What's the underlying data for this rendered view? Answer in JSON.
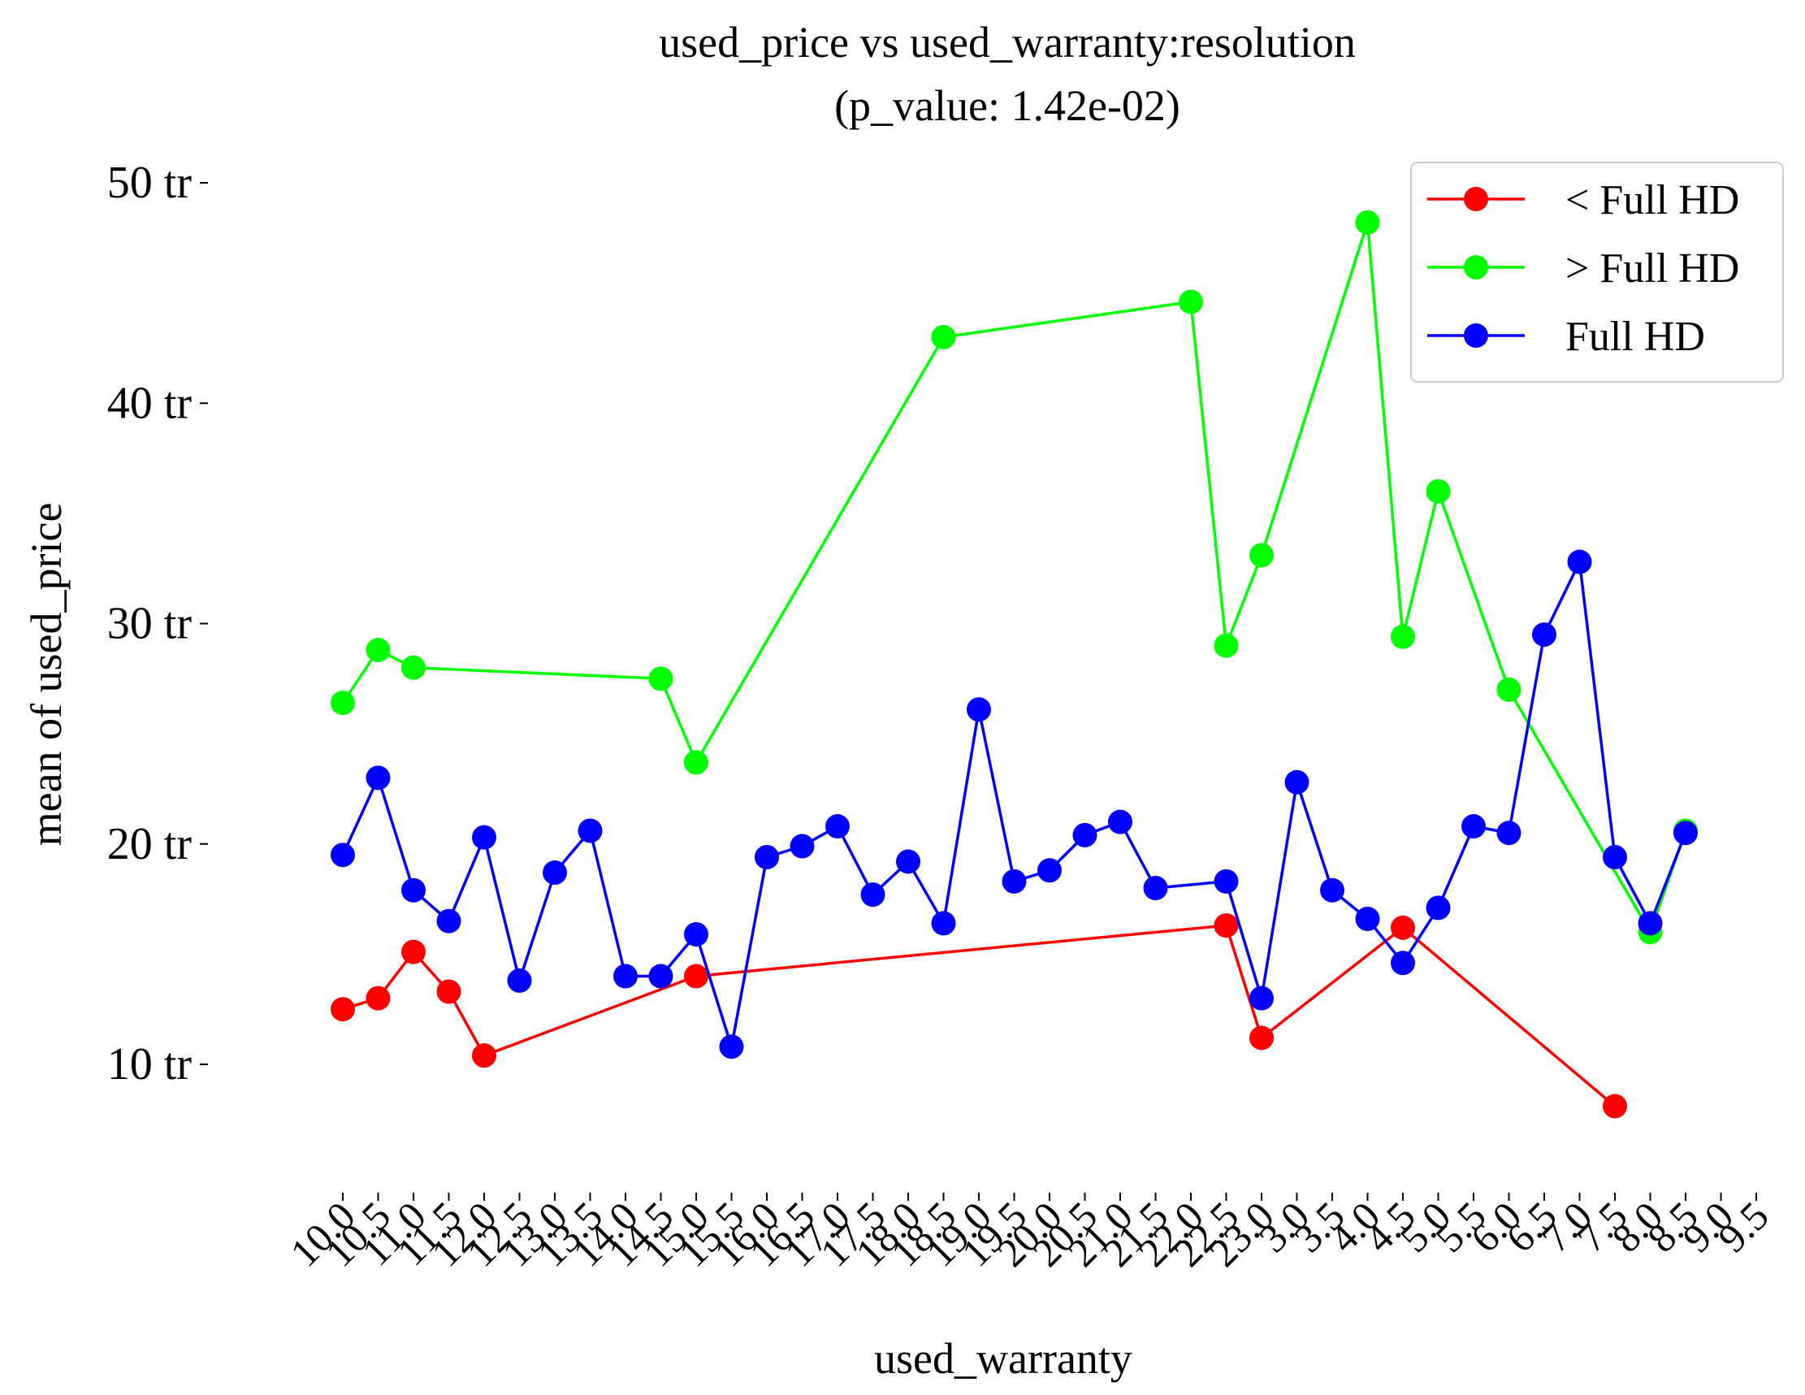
{
  "chart_data": {
    "type": "line",
    "title": "used_price vs used_warranty:resolution",
    "subtitle": "(p_value: 1.42e-02)",
    "xlabel": "used_warranty",
    "ylabel": "mean of used_price",
    "ylim": [
      4,
      50
    ],
    "yticks": [
      10,
      20,
      30,
      40,
      50
    ],
    "ytick_labels": [
      "10 tr",
      "20 tr",
      "30 tr",
      "40 tr",
      "50 tr"
    ],
    "categories": [
      "10.0",
      "10.5",
      "11.0",
      "11.5",
      "12.0",
      "12.5",
      "13.0",
      "13.5",
      "14.0",
      "14.5",
      "15.0",
      "15.5",
      "16.0",
      "16.5",
      "17.0",
      "17.5",
      "18.0",
      "18.5",
      "19.0",
      "19.5",
      "20.0",
      "20.5",
      "21.0",
      "21.5",
      "22.0",
      "22.5",
      "23.0",
      "3.0",
      "3.5",
      "4.0",
      "4.5",
      "5.0",
      "5.5",
      "6.0",
      "6.5",
      "7.0",
      "7.5",
      "8.0",
      "8.5",
      "9.0",
      "9.5"
    ],
    "x_tick_labels": [
      "10.0",
      "10.5",
      "11.0",
      "11.5",
      "12.0",
      "12.5",
      "13.0",
      "13.5",
      "14.0",
      "14.5",
      "15.0",
      "15.5",
      "16.0",
      "16.5",
      "17.0",
      "17.5",
      "18.0",
      "18.5",
      "19.0",
      "19.5",
      "20.0",
      "20.5",
      "21.0",
      "21.5",
      "22.0",
      "22.5",
      "23.0",
      "3.0",
      "3.5",
      "4.0",
      "4.5",
      "5.0",
      "5.5",
      "6.0",
      "6.5",
      "7.0",
      "7.5",
      "8.0",
      "8.5",
      "9.0",
      "9.5"
    ],
    "legend_position": "top-right",
    "grid": false,
    "series": [
      {
        "name": "< Full HD",
        "color": "#ff0000",
        "points": [
          [
            0,
            12.5
          ],
          [
            1,
            13.0
          ],
          [
            2,
            15.1
          ],
          [
            3,
            13.3
          ],
          [
            4,
            10.4
          ],
          [
            10,
            14.0
          ],
          [
            25,
            16.3
          ],
          [
            26,
            11.2
          ],
          [
            30,
            16.2
          ],
          [
            36,
            8.1
          ]
        ]
      },
      {
        "name": "> Full HD",
        "color": "#00ff00",
        "points": [
          [
            0,
            26.4
          ],
          [
            1,
            28.8
          ],
          [
            2,
            28.0
          ],
          [
            9,
            27.5
          ],
          [
            10,
            23.7
          ],
          [
            17,
            43.0
          ],
          [
            24,
            44.6
          ],
          [
            25,
            29.0
          ],
          [
            26,
            33.1
          ],
          [
            29,
            48.2
          ],
          [
            30,
            29.4
          ],
          [
            31,
            36.0
          ],
          [
            33,
            27.0
          ],
          [
            37,
            16.0
          ],
          [
            38,
            20.6
          ]
        ]
      },
      {
        "name": "Full HD",
        "color": "#0000ff",
        "points": [
          [
            0,
            19.5
          ],
          [
            1,
            23.0
          ],
          [
            2,
            17.9
          ],
          [
            3,
            16.5
          ],
          [
            4,
            20.3
          ],
          [
            5,
            13.8
          ],
          [
            6,
            18.7
          ],
          [
            7,
            20.6
          ],
          [
            8,
            14.0
          ],
          [
            9,
            14.0
          ],
          [
            10,
            15.9
          ],
          [
            11,
            10.8
          ],
          [
            12,
            19.4
          ],
          [
            13,
            19.9
          ],
          [
            14,
            20.8
          ],
          [
            15,
            17.7
          ],
          [
            16,
            19.2
          ],
          [
            17,
            16.4
          ],
          [
            18,
            26.1
          ],
          [
            19,
            18.3
          ],
          [
            20,
            18.8
          ],
          [
            21,
            20.4
          ],
          [
            22,
            21.0
          ],
          [
            23,
            18.0
          ],
          [
            25,
            18.3
          ],
          [
            26,
            13.0
          ],
          [
            27,
            22.8
          ],
          [
            28,
            17.9
          ],
          [
            29,
            16.6
          ],
          [
            30,
            14.6
          ],
          [
            31,
            17.1
          ],
          [
            32,
            20.8
          ],
          [
            33,
            20.5
          ],
          [
            34,
            29.5
          ],
          [
            35,
            32.8
          ],
          [
            36,
            19.4
          ],
          [
            37,
            16.4
          ],
          [
            38,
            20.5
          ]
        ]
      }
    ]
  }
}
